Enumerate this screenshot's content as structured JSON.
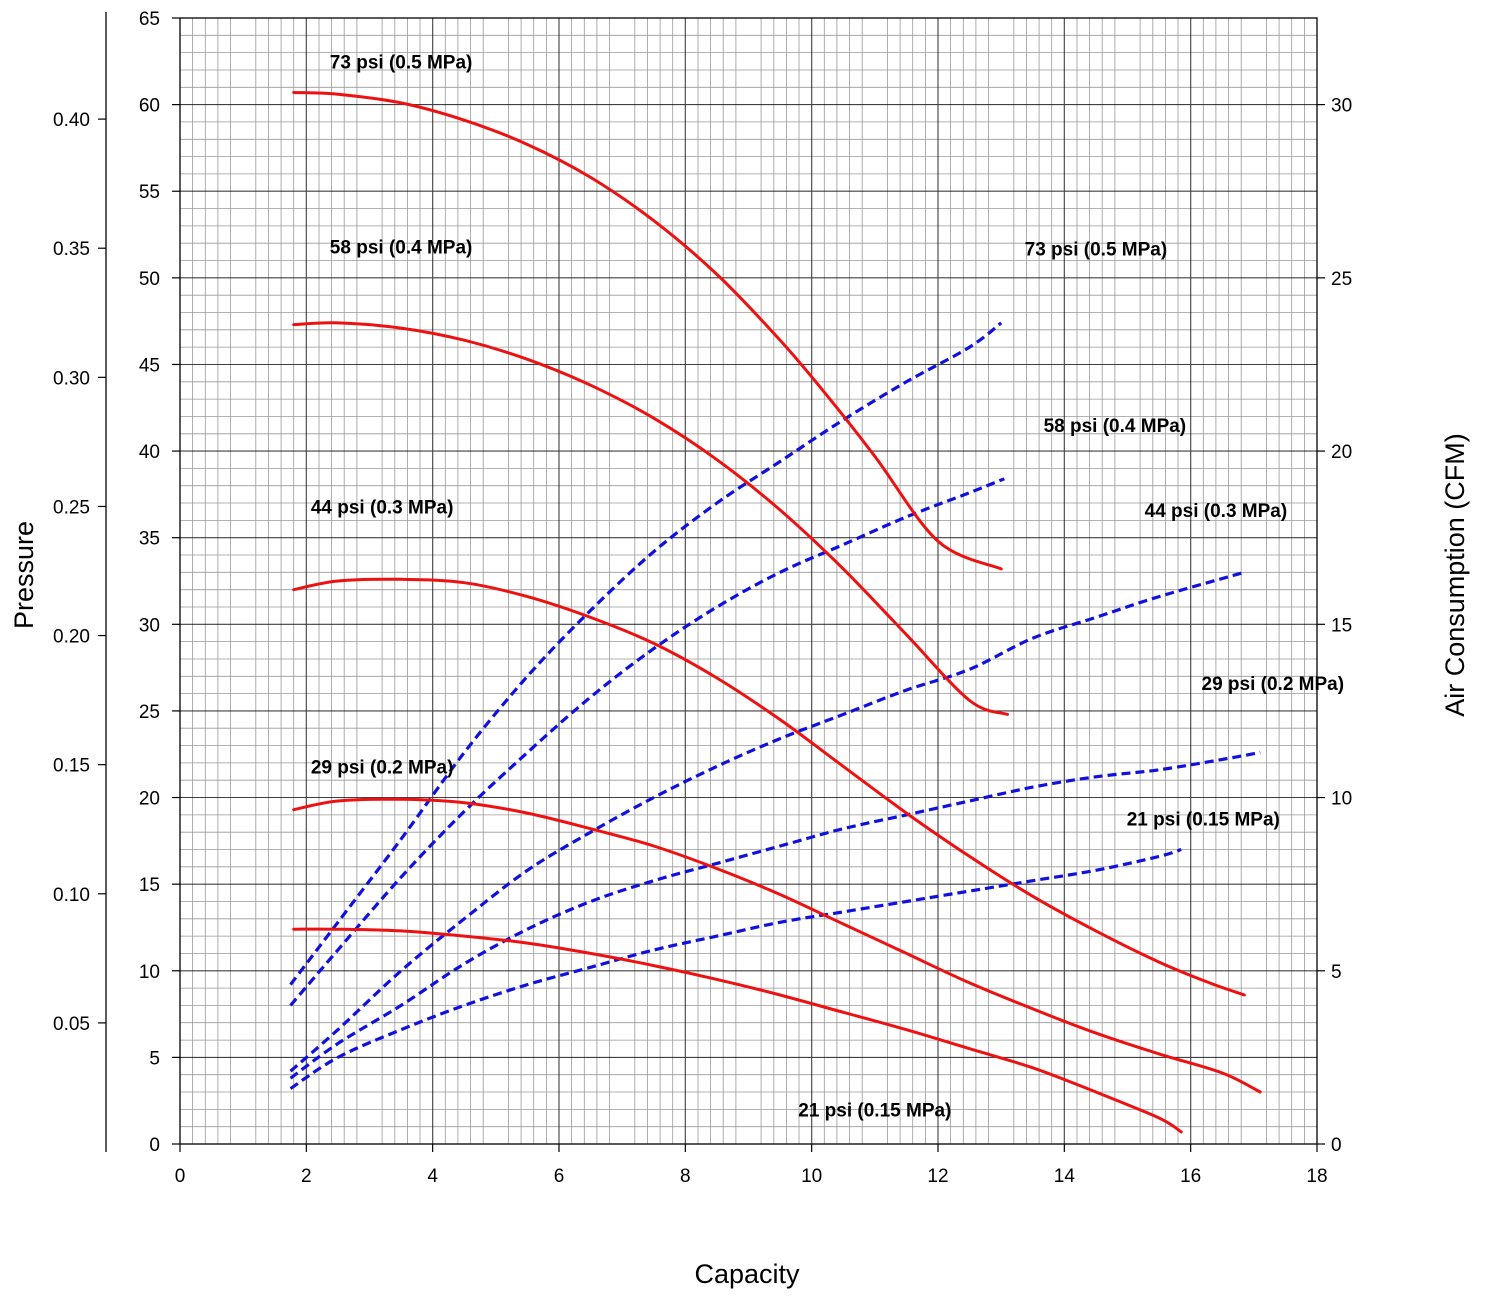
{
  "chart_data": {
    "type": "line",
    "xlabel": "Capacity",
    "ylabel": "Pressure",
    "y2label": "Air Consumption (CFM)",
    "xlim": [
      0,
      18
    ],
    "ylim": [
      0,
      65
    ],
    "y2lim": [
      0,
      32.5
    ],
    "outer_left_lim": [
      0,
      0.45
    ],
    "x_ticks": [
      "0",
      "2",
      "4",
      "6",
      "8",
      "10",
      "12",
      "14",
      "16",
      "18"
    ],
    "y_ticks": [
      "0",
      "5",
      "10",
      "15",
      "20",
      "25",
      "30",
      "35",
      "40",
      "45",
      "50",
      "55",
      "60",
      "65"
    ],
    "y2_ticks": [
      "0",
      "5",
      "10",
      "15",
      "20",
      "25",
      "30"
    ],
    "outer_left_ticks": [
      "0.05",
      "0.10",
      "0.15",
      "0.20",
      "0.25",
      "0.30",
      "0.35",
      "0.40"
    ],
    "outer_left_tick_values": [
      0.05,
      0.1,
      0.15,
      0.2,
      0.25,
      0.3,
      0.35,
      0.4
    ],
    "grid": true,
    "colors": {
      "pressure": "#ee1111",
      "air": "#1111dd",
      "grid_major": "#000000",
      "grid_minor": "#9a9a9a"
    },
    "pressure_series": [
      {
        "label": "73 psi (0.5 MPa)",
        "x": [
          1.8,
          2.5,
          3.5,
          4.5,
          5.5,
          6.5,
          7.5,
          8.5,
          9.5,
          10.2,
          11.0,
          12.0,
          13.0
        ],
        "y": [
          60.7,
          60.6,
          60.1,
          59.1,
          57.7,
          55.8,
          53.3,
          50.2,
          46.4,
          43.4,
          39.7,
          34.8,
          33.2
        ]
      },
      {
        "label": "58 psi (0.4 MPa)",
        "x": [
          1.8,
          2.5,
          3.5,
          4.5,
          5.5,
          6.5,
          7.5,
          8.5,
          9.5,
          10.5,
          11.5,
          12.5,
          13.1
        ],
        "y": [
          47.3,
          47.4,
          47.1,
          46.4,
          45.3,
          43.8,
          41.9,
          39.5,
          36.6,
          33.2,
          29.4,
          25.6,
          24.8
        ]
      },
      {
        "label": "44 psi (0.3 MPa)",
        "x": [
          1.8,
          2.5,
          3.5,
          4.5,
          5.5,
          6.5,
          7.5,
          8.5,
          9.5,
          10.5,
          11.5,
          12.5,
          13.5,
          14.5,
          15.5,
          16.3,
          16.85
        ],
        "y": [
          32.0,
          32.5,
          32.6,
          32.4,
          31.6,
          30.4,
          28.9,
          26.9,
          24.5,
          21.8,
          19.1,
          16.6,
          14.3,
          12.3,
          10.5,
          9.3,
          8.6
        ]
      },
      {
        "label": "29 psi (0.2 MPa)",
        "x": [
          1.8,
          2.5,
          3.5,
          4.5,
          5.5,
          6.5,
          7.5,
          8.5,
          9.5,
          10.5,
          11.5,
          12.5,
          13.5,
          14.5,
          15.5,
          16.5,
          17.1
        ],
        "y": [
          19.3,
          19.8,
          19.9,
          19.7,
          19.1,
          18.2,
          17.2,
          15.9,
          14.4,
          12.7,
          11.0,
          9.3,
          7.8,
          6.4,
          5.2,
          4.1,
          3.0
        ]
      },
      {
        "label": "21 psi (0.15 MPa)",
        "x": [
          1.8,
          2.5,
          3.5,
          4.5,
          5.5,
          6.5,
          7.5,
          8.5,
          9.5,
          10.5,
          11.5,
          12.5,
          13.5,
          14.5,
          15.5,
          15.85
        ],
        "y": [
          12.4,
          12.4,
          12.3,
          12.0,
          11.6,
          11.0,
          10.3,
          9.5,
          8.6,
          7.6,
          6.6,
          5.5,
          4.4,
          3.0,
          1.5,
          0.7
        ]
      }
    ],
    "air_series": [
      {
        "label": "73 psi (0.5 MPa)",
        "x": [
          1.75,
          2.5,
          3.5,
          4.5,
          5.5,
          6.5,
          7.5,
          8.5,
          9.5,
          10.5,
          11.5,
          12.5,
          13.0
        ],
        "y": [
          4.6,
          6.4,
          8.8,
          11.3,
          13.5,
          15.4,
          17.1,
          18.5,
          19.7,
          20.9,
          22.0,
          23.0,
          23.7
        ]
      },
      {
        "label": "58 psi (0.4 MPa)",
        "x": [
          1.75,
          2.5,
          3.5,
          4.5,
          5.5,
          6.5,
          7.5,
          8.5,
          9.5,
          10.5,
          11.5,
          12.5,
          13.05
        ],
        "y": [
          4.0,
          5.6,
          7.7,
          9.6,
          11.3,
          12.9,
          14.3,
          15.5,
          16.5,
          17.3,
          18.1,
          18.8,
          19.2
        ]
      },
      {
        "label": "44 psi (0.3 MPa)",
        "x": [
          1.75,
          2.5,
          3.5,
          4.5,
          5.5,
          6.5,
          7.5,
          8.5,
          9.5,
          10.5,
          11.5,
          12.5,
          13.5,
          14.5,
          15.5,
          16.85
        ],
        "y": [
          2.1,
          3.3,
          5.0,
          6.5,
          7.9,
          9.0,
          10.0,
          10.9,
          11.7,
          12.4,
          13.1,
          13.7,
          14.6,
          15.2,
          15.8,
          16.5
        ]
      },
      {
        "label": "29 psi (0.2 MPa)",
        "x": [
          1.75,
          2.5,
          3.5,
          4.5,
          5.5,
          6.5,
          7.5,
          8.5,
          9.5,
          10.5,
          11.5,
          12.5,
          13.5,
          14.5,
          15.5,
          16.5,
          17.1
        ],
        "y": [
          1.9,
          2.9,
          4.0,
          5.2,
          6.2,
          7.0,
          7.6,
          8.1,
          8.6,
          9.1,
          9.5,
          9.9,
          10.3,
          10.6,
          10.8,
          11.1,
          11.3
        ]
      },
      {
        "label": "21 psi (0.15 MPa)",
        "x": [
          1.75,
          2.5,
          3.5,
          4.5,
          5.5,
          6.5,
          7.5,
          8.5,
          9.5,
          10.5,
          11.5,
          12.5,
          13.5,
          14.5,
          15.5,
          15.85
        ],
        "y": [
          1.6,
          2.5,
          3.3,
          4.0,
          4.6,
          5.1,
          5.6,
          6.0,
          6.4,
          6.7,
          7.0,
          7.3,
          7.6,
          7.9,
          8.3,
          8.5
        ]
      }
    ],
    "annotations": [
      {
        "text": "73 psi (0.5 MPa)",
        "x": 3.5,
        "y": 62.5
      },
      {
        "text": "58 psi (0.4 MPa)",
        "x": 3.5,
        "y": 51.8
      },
      {
        "text": "44 psi (0.3 MPa)",
        "x": 3.2,
        "y": 36.8
      },
      {
        "text": "29 psi (0.2 MPa)",
        "x": 3.2,
        "y": 21.8
      },
      {
        "text": "73 psi (0.5 MPa)",
        "x": 14.5,
        "y": 51.7
      },
      {
        "text": "58 psi (0.4 MPa)",
        "x": 14.8,
        "y": 41.5
      },
      {
        "text": "44 psi (0.3 MPa)",
        "x": 16.4,
        "y": 36.6
      },
      {
        "text": "29 psi (0.2 MPa)",
        "x": 17.3,
        "y": 26.6
      },
      {
        "text": "21 psi (0.15 MPa)",
        "x": 16.2,
        "y": 18.8
      },
      {
        "text": "21 psi (0.15 MPa)",
        "x": 11.0,
        "y": 2.0
      }
    ]
  }
}
